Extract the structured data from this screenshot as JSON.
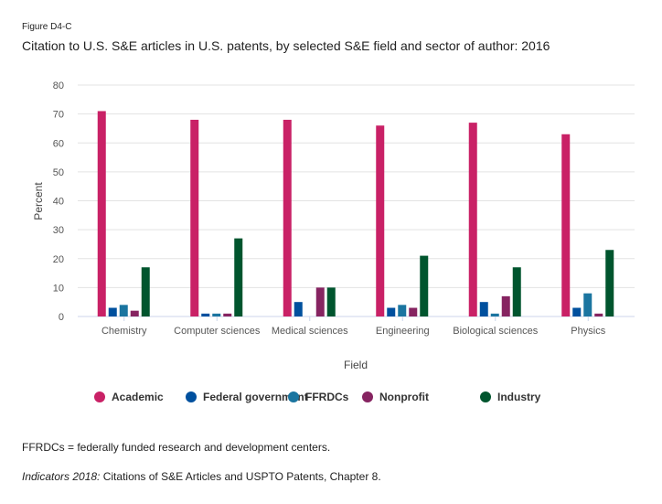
{
  "figure_label": "Figure D4-C",
  "title": "Citation to U.S. S&E articles in U.S. patents, by selected S&E field and sector of author: 2016",
  "note": "FFRDCs = federally funded research and development centers.",
  "source_italic": "Indicators 2018:",
  "source_rest": " Citations of S&E Articles and USPTO Patents, Chapter 8.",
  "chart_data": {
    "type": "bar",
    "xlabel": "Field",
    "ylabel": "Percent",
    "ylim": [
      0,
      80
    ],
    "yticks": [
      0,
      10,
      20,
      30,
      40,
      50,
      60,
      70,
      80
    ],
    "grid": true,
    "legend": "bottom",
    "categories": [
      "Chemistry",
      "Computer sciences",
      "Medical sciences",
      "Engineering",
      "Biological sciences",
      "Physics"
    ],
    "series": [
      {
        "name": "Academic",
        "color": "#c92166",
        "values": [
          71,
          68,
          68,
          66,
          67,
          63
        ]
      },
      {
        "name": "Federal government",
        "color": "#00509e",
        "values": [
          3,
          1,
          5,
          3,
          5,
          3
        ]
      },
      {
        "name": "FFRDCs",
        "color": "#1b75a0",
        "values": [
          4,
          1,
          0,
          4,
          1,
          8
        ]
      },
      {
        "name": "Nonprofit",
        "color": "#862461",
        "values": [
          2,
          1,
          10,
          3,
          7,
          1
        ]
      },
      {
        "name": "Industry",
        "color": "#00552e",
        "values": [
          17,
          27,
          10,
          21,
          17,
          23
        ]
      }
    ]
  }
}
